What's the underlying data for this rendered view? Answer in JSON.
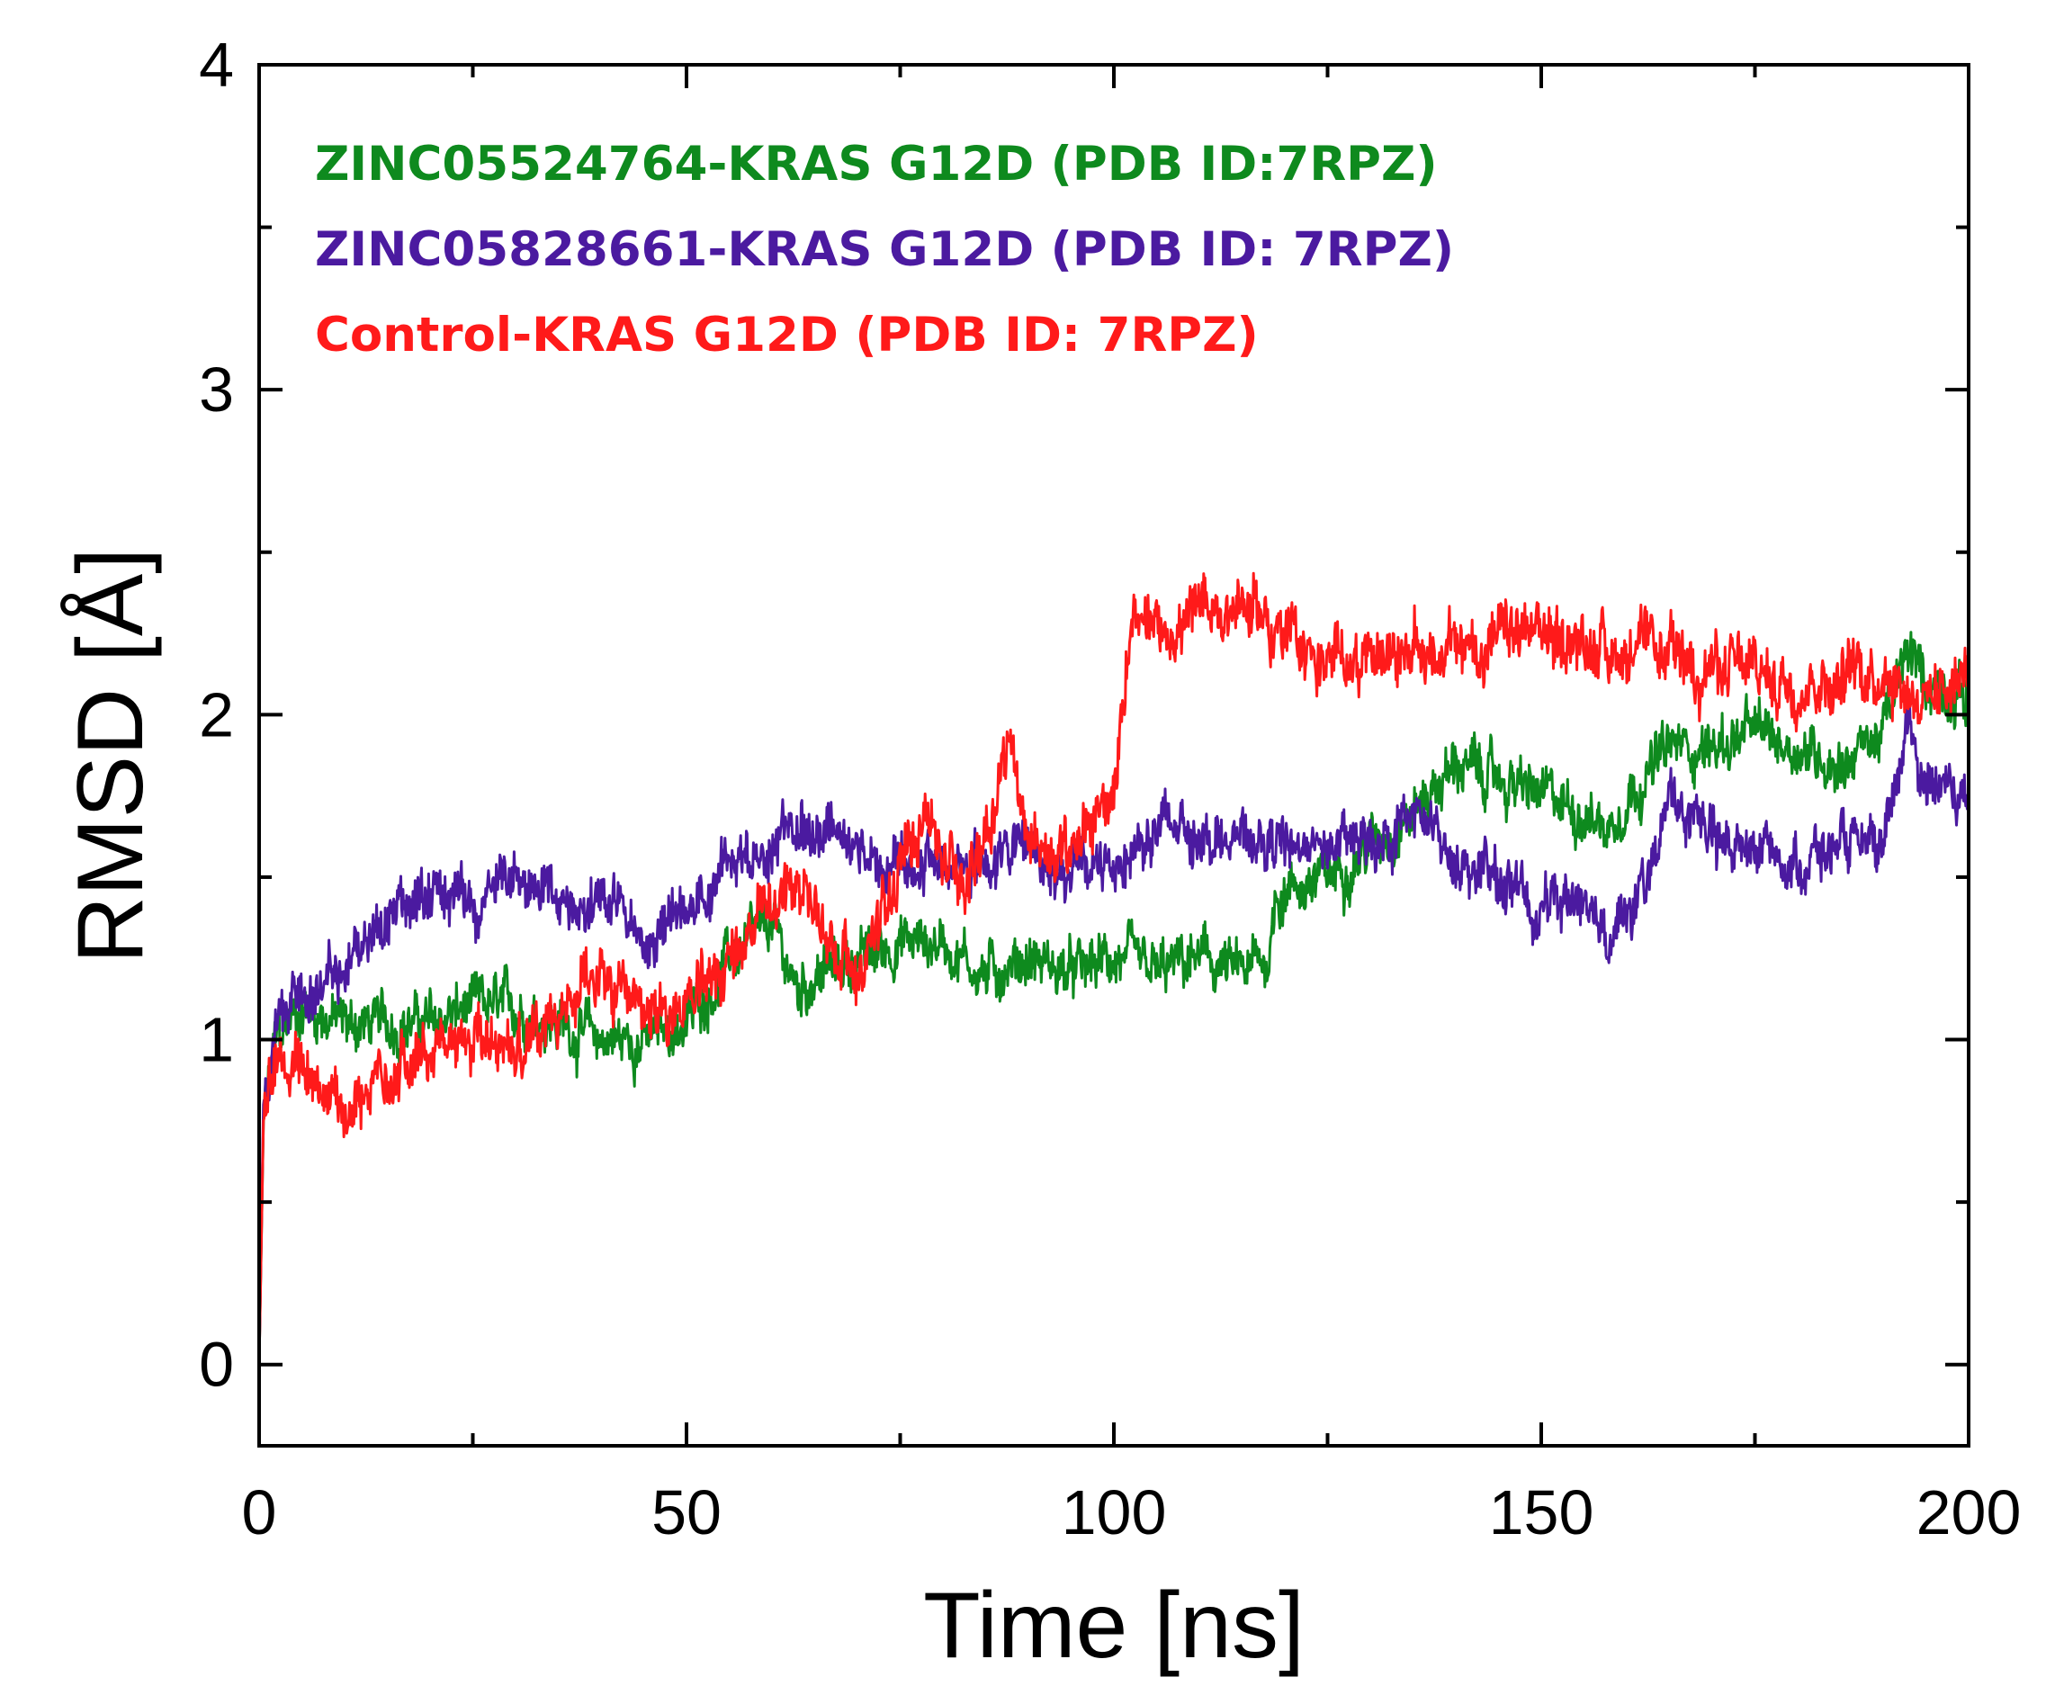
{
  "chart_data": {
    "type": "line",
    "title": "",
    "xlabel": "Time [ns]",
    "ylabel": "RMSD [Å]",
    "xlim": [
      0,
      200
    ],
    "ylim": [
      -0.25,
      4
    ],
    "xticks": [
      0,
      50,
      100,
      150,
      200
    ],
    "yticks": [
      0,
      1,
      2,
      3,
      4
    ],
    "grid": false,
    "legend_position": "top-left",
    "series": [
      {
        "name": "ZINC05524764-KRAS G12D (PDB ID:7RPZ)",
        "color": "#0e8a1e",
        "noise": 0.07,
        "x": [
          0,
          0.5,
          2,
          5,
          10,
          15,
          20,
          25,
          30,
          35,
          40,
          45,
          50,
          55,
          60,
          63,
          65,
          70,
          75,
          80,
          85,
          90,
          95,
          100,
          105,
          110,
          115,
          118,
          119,
          125,
          130,
          135,
          140,
          145,
          150,
          155,
          158,
          160,
          165,
          170,
          175,
          180,
          185,
          190,
          193,
          195,
          200
        ],
        "y": [
          0.0,
          0.75,
          1.0,
          1.1,
          1.05,
          1.05,
          1.05,
          1.1,
          1.1,
          1.05,
          1.0,
          1.0,
          1.05,
          1.25,
          1.35,
          1.15,
          1.2,
          1.25,
          1.3,
          1.3,
          1.2,
          1.25,
          1.2,
          1.25,
          1.2,
          1.25,
          1.2,
          1.25,
          1.45,
          1.5,
          1.6,
          1.7,
          1.85,
          1.8,
          1.75,
          1.7,
          1.65,
          1.75,
          1.9,
          1.9,
          1.95,
          1.9,
          1.85,
          1.95,
          2.2,
          2.1,
          2.05
        ]
      },
      {
        "name": "ZINC05828661-KRAS G12D (PDB ID: 7RPZ)",
        "color": "#4b1aa0",
        "noise": 0.07,
        "x": [
          0,
          0.5,
          2,
          5,
          10,
          15,
          20,
          25,
          30,
          35,
          40,
          45,
          50,
          55,
          60,
          63,
          65,
          70,
          75,
          80,
          85,
          90,
          95,
          100,
          105,
          110,
          115,
          120,
          125,
          130,
          135,
          140,
          145,
          150,
          155,
          158,
          160,
          163,
          165,
          170,
          175,
          180,
          185,
          190,
          193,
          195,
          200
        ],
        "y": [
          0.0,
          0.8,
          1.05,
          1.15,
          1.25,
          1.35,
          1.45,
          1.4,
          1.5,
          1.45,
          1.45,
          1.3,
          1.4,
          1.55,
          1.6,
          1.7,
          1.65,
          1.6,
          1.5,
          1.55,
          1.55,
          1.6,
          1.5,
          1.55,
          1.65,
          1.65,
          1.6,
          1.6,
          1.6,
          1.6,
          1.7,
          1.55,
          1.5,
          1.4,
          1.45,
          1.35,
          1.35,
          1.55,
          1.75,
          1.6,
          1.6,
          1.55,
          1.6,
          1.55,
          2.0,
          1.8,
          1.75
        ]
      },
      {
        "name": "Control-KRAS G12D (PDB ID: 7RPZ)",
        "color": "#ff1a1a",
        "noise": 0.08,
        "x": [
          0,
          0.5,
          2,
          5,
          10,
          15,
          20,
          25,
          30,
          35,
          38,
          40,
          45,
          50,
          55,
          60,
          63,
          65,
          70,
          75,
          78,
          80,
          83,
          86,
          88,
          90,
          95,
          100,
          102,
          105,
          110,
          115,
          120,
          125,
          130,
          140,
          150,
          160,
          170,
          180,
          190,
          195,
          200
        ],
        "y": [
          0.0,
          0.75,
          0.9,
          0.9,
          0.8,
          0.9,
          0.95,
          1.0,
          1.0,
          1.0,
          1.25,
          1.15,
          1.1,
          1.1,
          1.25,
          1.4,
          1.5,
          1.4,
          1.2,
          1.5,
          1.75,
          1.55,
          1.5,
          1.75,
          1.95,
          1.6,
          1.55,
          1.8,
          2.25,
          2.25,
          2.3,
          2.35,
          2.25,
          2.15,
          2.2,
          2.2,
          2.25,
          2.2,
          2.15,
          2.1,
          2.15,
          2.05,
          2.15
        ]
      }
    ]
  }
}
